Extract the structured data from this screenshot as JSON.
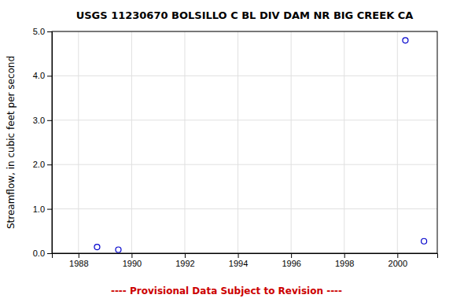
{
  "chart_data": {
    "type": "scatter",
    "title": "USGS 11230670 BOLSILLO C BL DIV DAM NR BIG CREEK CA",
    "ylabel": "Streamflow, in cubic feet per second",
    "annotation": "---- Provisional Data Subject to Revision ----",
    "x": [
      1988.7,
      1989.5,
      2000.3,
      2001.0
    ],
    "values": [
      0.14,
      0.08,
      4.8,
      0.27
    ],
    "color": "#0000cc",
    "marker": "circle",
    "xlim": [
      1987.0,
      2001.5
    ],
    "ylim": [
      0.0,
      5.0
    ],
    "xticks": [
      1988,
      1990,
      1992,
      1994,
      1996,
      1998,
      2000
    ],
    "yticks": [
      {
        "value": 0.0,
        "label": "0.0"
      },
      {
        "value": 1.0,
        "label": "1.0"
      },
      {
        "value": 2.0,
        "label": "2.0"
      },
      {
        "value": 3.0,
        "label": "3.0"
      },
      {
        "value": 4.0,
        "label": "4.0"
      },
      {
        "value": 5.0,
        "label": "5.0"
      }
    ],
    "grid": true
  }
}
